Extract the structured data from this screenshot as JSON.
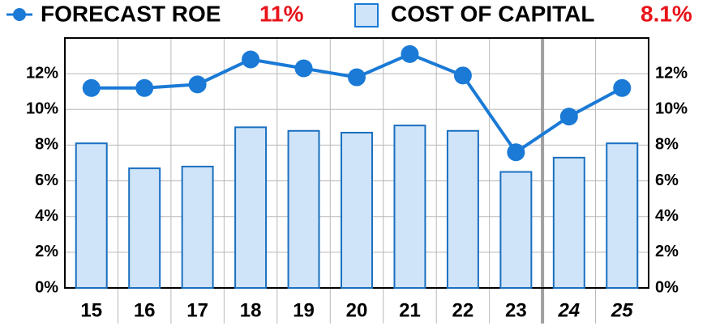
{
  "chart_data": {
    "type": "bar-line",
    "categories": [
      "15",
      "16",
      "17",
      "18",
      "19",
      "20",
      "21",
      "22",
      "23",
      "24",
      "25"
    ],
    "series": [
      {
        "name": "FORECAST ROE",
        "headline": "11%",
        "type": "line",
        "color": "#1a7ad6",
        "values": [
          11.2,
          11.2,
          11.4,
          12.8,
          12.3,
          11.8,
          13.1,
          11.9,
          7.6,
          9.6,
          11.2
        ]
      },
      {
        "name": "COST OF CAPITAL",
        "headline": "8.1%",
        "type": "bar",
        "color": "#cfe4f8",
        "values": [
          8.1,
          6.7,
          6.8,
          9.0,
          8.8,
          8.7,
          9.1,
          8.8,
          6.5,
          7.3,
          8.1
        ]
      }
    ],
    "ylim": [
      0,
      14
    ],
    "yticks": [
      {
        "value": 0,
        "label": "0%"
      },
      {
        "value": 2,
        "label": "2%"
      },
      {
        "value": 4,
        "label": "4%"
      },
      {
        "value": 6,
        "label": "6%"
      },
      {
        "value": 8,
        "label": "8%"
      },
      {
        "value": 10,
        "label": "10%"
      },
      {
        "value": 12,
        "label": "12%"
      }
    ],
    "grid": true
  }
}
